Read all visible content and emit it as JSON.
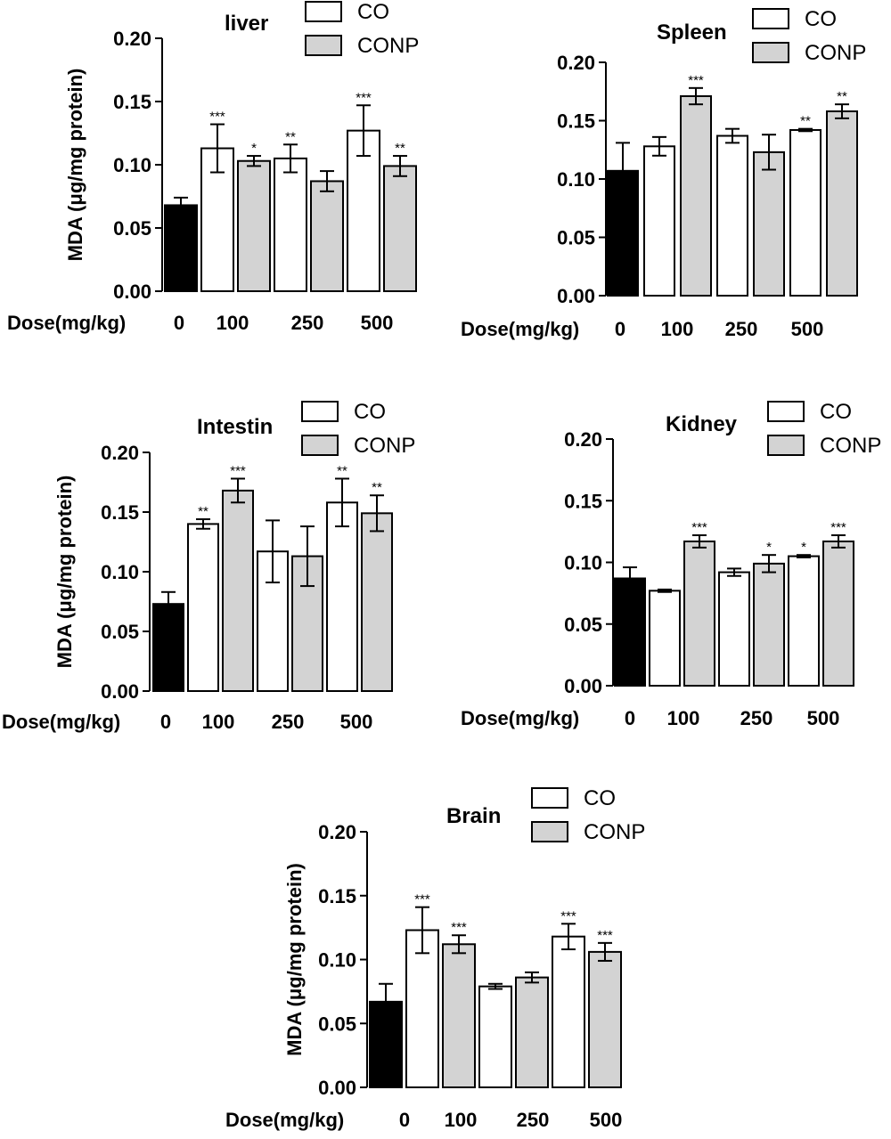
{
  "chart_data": [
    {
      "type": "bar",
      "title": "liver",
      "ylabel": "MDA (μg/mg protein)",
      "xlabel": "Dose(mg/kg)",
      "ylim": [
        0,
        0.2
      ],
      "yticks": [
        "0.00",
        "0.05",
        "0.10",
        "0.15",
        "0.20"
      ],
      "dose_labels": [
        "0",
        "100",
        "250",
        "500"
      ],
      "legend": [
        "CO",
        "CONP"
      ],
      "bars": [
        {
          "dose": "0",
          "group": "control",
          "value": 0.068,
          "error": 0.006,
          "sig": ""
        },
        {
          "dose": "100",
          "group": "CO",
          "value": 0.113,
          "error": 0.019,
          "sig": "***"
        },
        {
          "dose": "100",
          "group": "CONP",
          "value": 0.103,
          "error": 0.004,
          "sig": "*"
        },
        {
          "dose": "250",
          "group": "CO",
          "value": 0.105,
          "error": 0.011,
          "sig": "**"
        },
        {
          "dose": "250",
          "group": "CONP",
          "value": 0.087,
          "error": 0.008,
          "sig": ""
        },
        {
          "dose": "500",
          "group": "CO",
          "value": 0.127,
          "error": 0.02,
          "sig": "***"
        },
        {
          "dose": "500",
          "group": "CONP",
          "value": 0.099,
          "error": 0.008,
          "sig": "**"
        }
      ]
    },
    {
      "type": "bar",
      "title": "Spleen",
      "ylabel": "",
      "xlabel": "Dose(mg/kg)",
      "ylim": [
        0,
        0.2
      ],
      "yticks": [
        "0.00",
        "0.05",
        "0.10",
        "0.15",
        "0.20"
      ],
      "dose_labels": [
        "0",
        "100",
        "250",
        "500"
      ],
      "legend": [
        "CO",
        "CONP"
      ],
      "bars": [
        {
          "dose": "0",
          "group": "control",
          "value": 0.107,
          "error": 0.024,
          "sig": ""
        },
        {
          "dose": "100",
          "group": "CO",
          "value": 0.128,
          "error": 0.008,
          "sig": ""
        },
        {
          "dose": "100",
          "group": "CONP",
          "value": 0.171,
          "error": 0.007,
          "sig": "***"
        },
        {
          "dose": "250",
          "group": "CO",
          "value": 0.137,
          "error": 0.006,
          "sig": ""
        },
        {
          "dose": "250",
          "group": "CONP",
          "value": 0.123,
          "error": 0.015,
          "sig": ""
        },
        {
          "dose": "500",
          "group": "CO",
          "value": 0.142,
          "error": 0.001,
          "sig": "**"
        },
        {
          "dose": "500",
          "group": "CONP",
          "value": 0.158,
          "error": 0.006,
          "sig": "**"
        }
      ]
    },
    {
      "type": "bar",
      "title": "Intestin",
      "ylabel": "MDA (μg/mg protein)",
      "xlabel": "Dose(mg/kg)",
      "ylim": [
        0,
        0.2
      ],
      "yticks": [
        "0.00",
        "0.05",
        "0.10",
        "0.15",
        "0.20"
      ],
      "dose_labels": [
        "0",
        "100",
        "250",
        "500"
      ],
      "legend": [
        "CO",
        "CONP"
      ],
      "bars": [
        {
          "dose": "0",
          "group": "control",
          "value": 0.073,
          "error": 0.01,
          "sig": ""
        },
        {
          "dose": "100",
          "group": "CO",
          "value": 0.14,
          "error": 0.004,
          "sig": "**"
        },
        {
          "dose": "100",
          "group": "CONP",
          "value": 0.168,
          "error": 0.01,
          "sig": "***"
        },
        {
          "dose": "250",
          "group": "CO",
          "value": 0.117,
          "error": 0.026,
          "sig": ""
        },
        {
          "dose": "250",
          "group": "CONP",
          "value": 0.113,
          "error": 0.025,
          "sig": ""
        },
        {
          "dose": "500",
          "group": "CO",
          "value": 0.158,
          "error": 0.02,
          "sig": "**"
        },
        {
          "dose": "500",
          "group": "CONP",
          "value": 0.149,
          "error": 0.015,
          "sig": "**"
        }
      ]
    },
    {
      "type": "bar",
      "title": "Kidney",
      "ylabel": "",
      "xlabel": "Dose(mg/kg)",
      "ylim": [
        0,
        0.2
      ],
      "yticks": [
        "0.00",
        "0.05",
        "0.10",
        "0.15",
        "0.20"
      ],
      "dose_labels": [
        "0",
        "100",
        "250",
        "500"
      ],
      "legend": [
        "CO",
        "CONP"
      ],
      "bars": [
        {
          "dose": "0",
          "group": "control",
          "value": 0.087,
          "error": 0.009,
          "sig": ""
        },
        {
          "dose": "100",
          "group": "CO",
          "value": 0.077,
          "error": 0.001,
          "sig": ""
        },
        {
          "dose": "100",
          "group": "CONP",
          "value": 0.117,
          "error": 0.005,
          "sig": "***"
        },
        {
          "dose": "250",
          "group": "CO",
          "value": 0.092,
          "error": 0.003,
          "sig": ""
        },
        {
          "dose": "250",
          "group": "CONP",
          "value": 0.099,
          "error": 0.007,
          "sig": "*"
        },
        {
          "dose": "500",
          "group": "CO",
          "value": 0.105,
          "error": 0.001,
          "sig": "*"
        },
        {
          "dose": "500",
          "group": "CONP",
          "value": 0.117,
          "error": 0.005,
          "sig": "***"
        }
      ]
    },
    {
      "type": "bar",
      "title": "Brain",
      "ylabel": "MDA (μg/mg protein)",
      "xlabel": "Dose(mg/kg)",
      "ylim": [
        0,
        0.2
      ],
      "yticks": [
        "0.00",
        "0.05",
        "0.10",
        "0.15",
        "0.20"
      ],
      "dose_labels": [
        "0",
        "100",
        "250",
        "500"
      ],
      "legend": [
        "CO",
        "CONP"
      ],
      "bars": [
        {
          "dose": "0",
          "group": "control",
          "value": 0.067,
          "error": 0.014,
          "sig": ""
        },
        {
          "dose": "100",
          "group": "CO",
          "value": 0.123,
          "error": 0.018,
          "sig": "***"
        },
        {
          "dose": "100",
          "group": "CONP",
          "value": 0.112,
          "error": 0.007,
          "sig": "***"
        },
        {
          "dose": "250",
          "group": "CO",
          "value": 0.079,
          "error": 0.002,
          "sig": ""
        },
        {
          "dose": "250",
          "group": "CONP",
          "value": 0.086,
          "error": 0.004,
          "sig": ""
        },
        {
          "dose": "500",
          "group": "CO",
          "value": 0.118,
          "error": 0.01,
          "sig": "***"
        },
        {
          "dose": "500",
          "group": "CONP",
          "value": 0.106,
          "error": 0.007,
          "sig": "***"
        }
      ]
    }
  ],
  "colors": {
    "control": "#000000",
    "CO": "#ffffff",
    "CONP": "#d3d3d3",
    "stroke": "#000000"
  }
}
